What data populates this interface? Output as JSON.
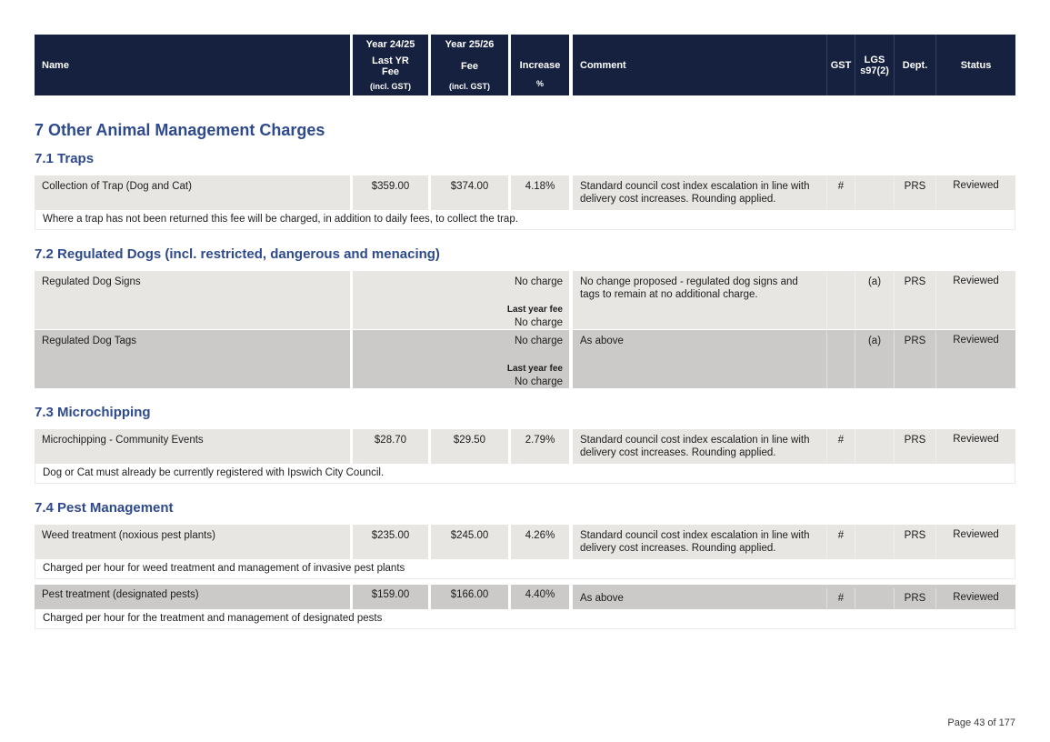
{
  "header": {
    "name": "Name",
    "prev": {
      "year": "Year 24/25",
      "fee_label": "Last YR\nFee",
      "gst_note": "(incl. GST)"
    },
    "curr": {
      "year": "Year 25/26",
      "fee_label": "Fee",
      "gst_note": "(incl. GST)"
    },
    "increase": {
      "label": "Increase",
      "unit": "%"
    },
    "comment": "Comment",
    "gst": "GST",
    "lgs": "LGS\ns97(2)",
    "dept": "Dept.",
    "status": "Status"
  },
  "sections": {
    "main_title": "7 Other Animal Management Charges",
    "s71": {
      "title": "7.1 Traps",
      "row1": {
        "name": "Collection of Trap (Dog and Cat)",
        "prev_fee": "$359.00",
        "fee": "$374.00",
        "increase": "4.18%",
        "comment": "Standard council cost index escalation in line with delivery cost increases. Rounding applied.",
        "gst": "#",
        "lgs": "",
        "dept": "PRS",
        "status": "Reviewed",
        "note": "Where a trap has not been returned this fee will be charged, in addition to daily fees, to collect the trap."
      }
    },
    "s72": {
      "title": "7.2 Regulated Dogs (incl. restricted, dangerous and menacing)",
      "row1": {
        "name": "Regulated Dog Signs",
        "fee_current": "No charge",
        "last_year_label": "Last year fee",
        "fee_previous": "No charge",
        "comment": "No change proposed - regulated dog signs and tags to remain at no additional charge.",
        "gst": "",
        "lgs": "(a)",
        "dept": "PRS",
        "status": "Reviewed"
      },
      "row2": {
        "name": "Regulated Dog Tags",
        "fee_current": "No charge",
        "last_year_label": "Last year fee",
        "fee_previous": "No charge",
        "comment": "As above",
        "gst": "",
        "lgs": "(a)",
        "dept": "PRS",
        "status": "Reviewed"
      }
    },
    "s73": {
      "title": "7.3 Microchipping",
      "row1": {
        "name": "Microchipping - Community Events",
        "prev_fee": "$28.70",
        "fee": "$29.50",
        "increase": "2.79%",
        "comment": "Standard council cost index escalation in line with delivery cost increases. Rounding applied.",
        "gst": "#",
        "lgs": "",
        "dept": "PRS",
        "status": "Reviewed",
        "note": "Dog or Cat must already be currently registered with Ipswich City Council."
      }
    },
    "s74": {
      "title": "7.4 Pest Management",
      "row1": {
        "name": "Weed treatment (noxious pest plants)",
        "prev_fee": "$235.00",
        "fee": "$245.00",
        "increase": "4.26%",
        "comment": "Standard council cost index escalation in line with delivery cost increases. Rounding applied.",
        "gst": "#",
        "lgs": "",
        "dept": "PRS",
        "status": "Reviewed",
        "note": "Charged per hour for weed treatment and management of invasive pest plants"
      },
      "row2": {
        "name": "Pest treatment (designated pests)",
        "prev_fee": "$159.00",
        "fee": "$166.00",
        "increase": "4.40%",
        "comment": "As above",
        "gst": "#",
        "lgs": "",
        "dept": "PRS",
        "status": "Reviewed",
        "note": "Charged per hour for the treatment and management of designated pests"
      }
    }
  },
  "footer": {
    "page_indicator": "Page 43 of 177"
  },
  "colors": {
    "header_bg": "#15213F",
    "heading_text": "#2E4A8C",
    "row_light": "#E8E6E3",
    "row_dark": "#CBCAC8"
  }
}
